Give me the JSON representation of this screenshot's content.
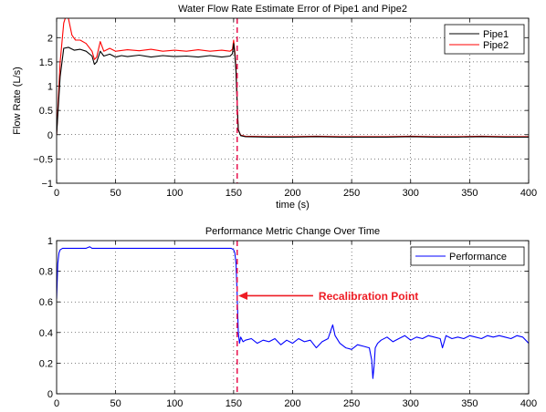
{
  "chart_data": [
    {
      "type": "line",
      "title": "Water Flow Rate Estimate Error of Pipe1 and Pipe2",
      "xlabel": "time (s)",
      "ylabel": "Flow Rate (L/s)",
      "xlim": [
        0,
        400
      ],
      "ylim": [
        -1,
        2.4
      ],
      "xticks": [
        0,
        50,
        100,
        150,
        200,
        250,
        300,
        350,
        400
      ],
      "yticks": [
        -1,
        -0.5,
        0,
        0.5,
        1,
        1.5,
        2
      ],
      "ytick_labels": [
        "−1",
        "−0.5",
        "0",
        "0.5",
        "1",
        "1.5",
        "2"
      ],
      "grid": "dotted",
      "legend_position": "top-right",
      "colors": {
        "Pipe1": "#000000",
        "Pipe2": "#ff0000",
        "marker": "#e8134f"
      },
      "vline_x": 153,
      "series": [
        {
          "name": "Pipe1",
          "x": [
            0,
            3,
            6,
            10,
            15,
            20,
            25,
            30,
            32,
            34,
            37,
            40,
            45,
            50,
            55,
            60,
            70,
            80,
            90,
            100,
            110,
            120,
            130,
            140,
            147,
            149,
            150,
            151,
            152,
            153,
            154,
            156,
            160,
            180,
            200,
            220,
            240,
            260,
            280,
            300,
            320,
            340,
            360,
            380,
            400
          ],
          "y": [
            0,
            1.2,
            1.78,
            1.8,
            1.74,
            1.76,
            1.72,
            1.62,
            1.45,
            1.5,
            1.72,
            1.62,
            1.66,
            1.6,
            1.63,
            1.61,
            1.64,
            1.6,
            1.63,
            1.61,
            1.62,
            1.6,
            1.63,
            1.6,
            1.62,
            1.67,
            1.88,
            1.65,
            1.3,
            0.6,
            0.1,
            -0.02,
            -0.04,
            -0.05,
            -0.05,
            -0.04,
            -0.05,
            -0.05,
            -0.05,
            -0.04,
            -0.05,
            -0.05,
            -0.04,
            -0.05,
            -0.05
          ]
        },
        {
          "name": "Pipe2",
          "x": [
            0,
            3,
            6,
            8,
            10,
            13,
            16,
            20,
            25,
            30,
            32,
            34,
            37,
            40,
            45,
            50,
            60,
            70,
            80,
            90,
            100,
            110,
            120,
            130,
            140,
            147,
            149,
            150,
            151,
            152,
            153,
            154,
            156,
            160,
            180,
            200,
            220,
            240,
            260,
            280,
            300,
            320,
            340,
            360,
            380,
            400
          ],
          "y": [
            0,
            1.5,
            2.3,
            2.45,
            2.4,
            2.05,
            1.95,
            1.95,
            1.88,
            1.72,
            1.55,
            1.6,
            1.92,
            1.72,
            1.78,
            1.72,
            1.75,
            1.73,
            1.76,
            1.72,
            1.74,
            1.72,
            1.75,
            1.72,
            1.74,
            1.72,
            1.76,
            1.95,
            1.72,
            1.35,
            0.65,
            0.1,
            -0.01,
            -0.03,
            -0.04,
            -0.04,
            -0.03,
            -0.04,
            -0.04,
            -0.04,
            -0.03,
            -0.04,
            -0.04,
            -0.03,
            -0.04,
            -0.04
          ]
        }
      ]
    },
    {
      "type": "line",
      "title": "Performance Metric Change Over Time",
      "xlabel": "",
      "ylabel": "",
      "xlim": [
        0,
        400
      ],
      "ylim": [
        0,
        1
      ],
      "xticks": [
        0,
        50,
        100,
        150,
        200,
        250,
        300,
        350,
        400
      ],
      "yticks": [
        0,
        0.2,
        0.4,
        0.6,
        0.8,
        1
      ],
      "ytick_labels": [
        "0",
        "0.2",
        "0.4",
        "0.6",
        "0.8",
        "1"
      ],
      "grid": "dotted",
      "legend_position": "top-right",
      "colors": {
        "Performance": "#0000ff",
        "marker": "#e8134f",
        "annotation": "#ee1c24"
      },
      "vline_x": 153,
      "annotation": {
        "text": "Recalibration Point",
        "arrow_to": [
          154,
          0.64
        ],
        "text_at": [
          222,
          0.64
        ]
      },
      "series": [
        {
          "name": "Performance",
          "x": [
            0,
            1,
            2,
            3,
            5,
            8,
            15,
            25,
            28,
            30,
            35,
            50,
            80,
            100,
            120,
            140,
            148,
            150,
            151,
            152,
            153,
            154,
            155,
            156,
            158,
            160,
            165,
            170,
            175,
            180,
            185,
            190,
            195,
            200,
            205,
            210,
            215,
            220,
            225,
            230,
            234,
            236,
            240,
            245,
            250,
            255,
            260,
            265,
            267,
            268,
            269,
            270,
            272,
            275,
            280,
            285,
            290,
            295,
            300,
            305,
            310,
            315,
            320,
            325,
            327,
            330,
            335,
            340,
            345,
            350,
            355,
            360,
            365,
            370,
            375,
            380,
            385,
            390,
            395,
            400
          ],
          "y": [
            0.62,
            0.85,
            0.92,
            0.94,
            0.95,
            0.95,
            0.95,
            0.95,
            0.96,
            0.95,
            0.95,
            0.95,
            0.95,
            0.95,
            0.95,
            0.95,
            0.95,
            0.94,
            0.92,
            0.85,
            0.64,
            0.4,
            0.33,
            0.37,
            0.34,
            0.35,
            0.36,
            0.33,
            0.35,
            0.34,
            0.36,
            0.32,
            0.35,
            0.33,
            0.36,
            0.34,
            0.35,
            0.3,
            0.34,
            0.36,
            0.45,
            0.38,
            0.33,
            0.3,
            0.29,
            0.32,
            0.31,
            0.3,
            0.22,
            0.1,
            0.18,
            0.3,
            0.33,
            0.35,
            0.37,
            0.34,
            0.36,
            0.38,
            0.35,
            0.37,
            0.36,
            0.38,
            0.37,
            0.36,
            0.3,
            0.38,
            0.36,
            0.37,
            0.36,
            0.38,
            0.37,
            0.36,
            0.38,
            0.37,
            0.38,
            0.37,
            0.36,
            0.38,
            0.37,
            0.33
          ]
        }
      ]
    }
  ]
}
